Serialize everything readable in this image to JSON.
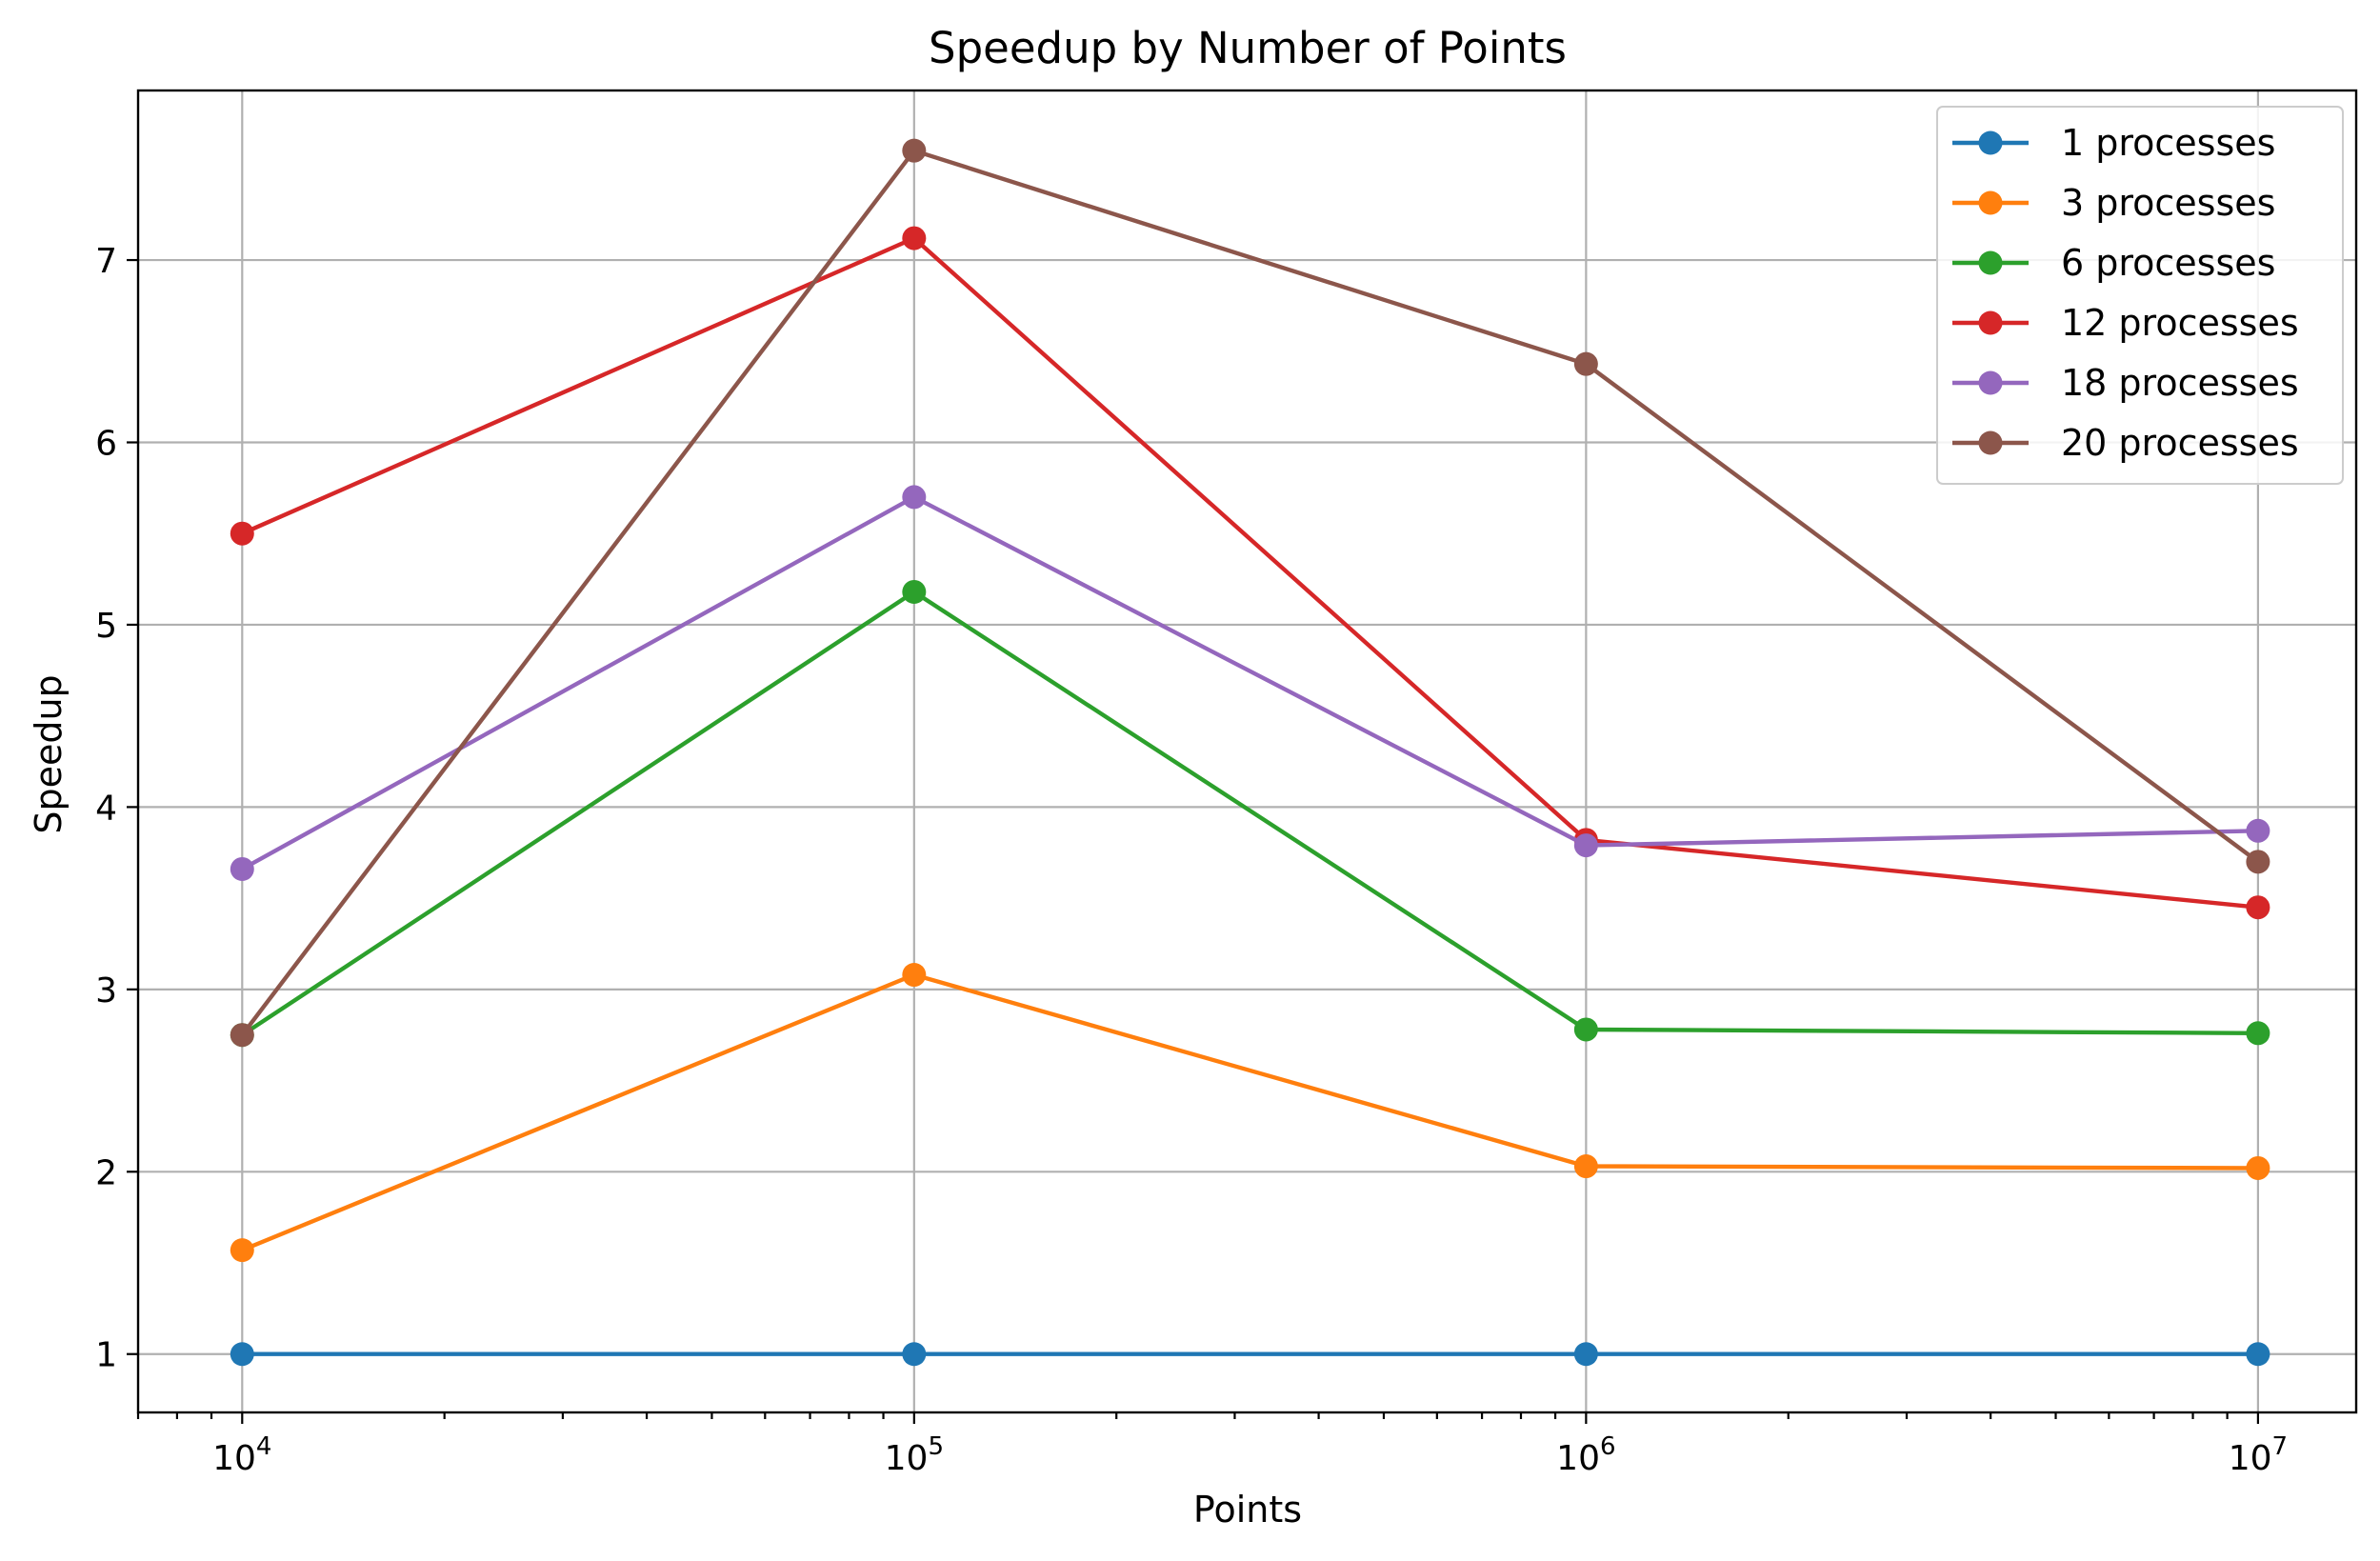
{
  "chart_data": {
    "type": "line",
    "title": "Speedup by Number of Points",
    "xlabel": "Points",
    "ylabel": "Speedup",
    "x_scale": "log",
    "x": [
      10000,
      100000,
      1000000,
      10000000
    ],
    "x_tick_labels": [
      {
        "base": "10",
        "exp": "4"
      },
      {
        "base": "10",
        "exp": "5"
      },
      {
        "base": "10",
        "exp": "6"
      },
      {
        "base": "10",
        "exp": "7"
      }
    ],
    "xlim": [
      7000,
      14000000
    ],
    "ylim": [
      0.68,
      7.93
    ],
    "y_ticks": [
      1,
      2,
      3,
      4,
      5,
      6,
      7
    ],
    "grid": true,
    "legend_position": "top-right",
    "series": [
      {
        "name": "1 processes",
        "color": "#1f77b4",
        "values": [
          1.0,
          1.0,
          1.0,
          1.0
        ]
      },
      {
        "name": "3 processes",
        "color": "#ff7f0e",
        "values": [
          1.57,
          3.08,
          2.03,
          2.02
        ]
      },
      {
        "name": "6 processes",
        "color": "#2ca02c",
        "values": [
          2.75,
          5.18,
          2.78,
          2.76
        ]
      },
      {
        "name": "12 processes",
        "color": "#d62728",
        "values": [
          5.5,
          7.12,
          3.82,
          3.45
        ]
      },
      {
        "name": "18 processes",
        "color": "#9467bd",
        "values": [
          3.66,
          5.7,
          3.79,
          3.87
        ]
      },
      {
        "name": "20 processes",
        "color": "#8c564b",
        "values": [
          2.75,
          7.6,
          6.43,
          3.7
        ]
      }
    ]
  }
}
